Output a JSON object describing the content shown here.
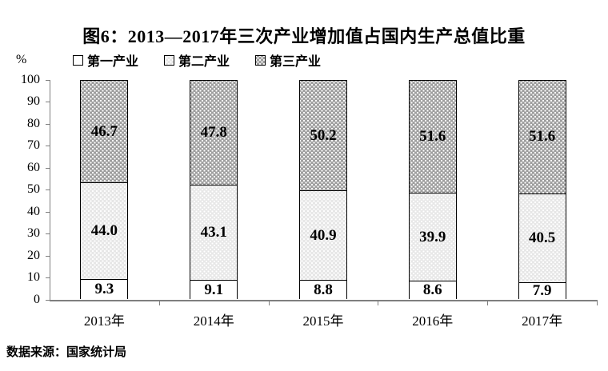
{
  "page": {
    "background": "#ffffff"
  },
  "chart_data": {
    "type": "bar",
    "stacked": true,
    "title": "图6：2013—2017年三次产业增加值占国内生产总值比重",
    "unit_label": "%",
    "categories": [
      "2013年",
      "2014年",
      "2015年",
      "2016年",
      "2017年"
    ],
    "series": [
      {
        "name": "第一产业",
        "values": [
          9.3,
          9.1,
          8.8,
          8.6,
          7.9
        ],
        "fill": "#ffffff",
        "pattern": "solid-white"
      },
      {
        "name": "第二产业",
        "values": [
          44.0,
          43.1,
          40.9,
          39.9,
          40.5
        ],
        "fill": "#e7e7e7",
        "pattern": "light-dots"
      },
      {
        "name": "第三产业",
        "values": [
          46.7,
          47.8,
          50.2,
          51.6,
          51.6
        ],
        "fill": "#9f9f9f",
        "pattern": "dark-dots"
      }
    ],
    "ylim": [
      0,
      100
    ],
    "ytick_step": 10,
    "grid": false,
    "legend_position": "top-left",
    "value_decimals": 1,
    "axis_color": "#7f7f7f",
    "border_color": "#000000",
    "source": "数据来源：国家统计局"
  }
}
